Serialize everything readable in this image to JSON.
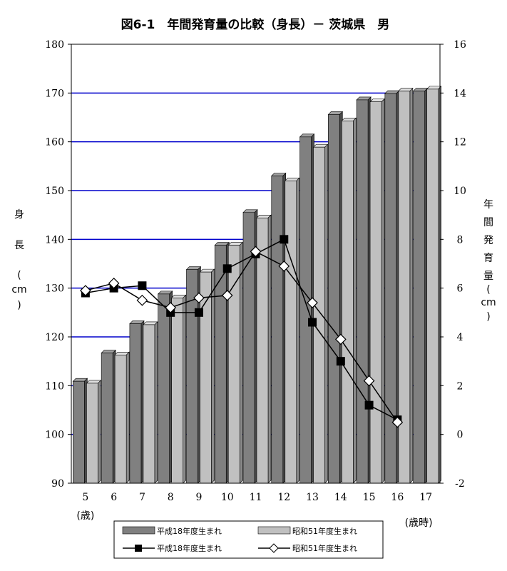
{
  "chart_data": {
    "type": "bar",
    "title": "図6-1　年間発育量の比較（身長）－ 茨城県　男",
    "categories": [
      "5",
      "6",
      "7",
      "8",
      "9",
      "10",
      "11",
      "12",
      "13",
      "14",
      "15",
      "16",
      "17"
    ],
    "x_unit_left": "(歳)",
    "x_unit_right": "(歳時)",
    "y_left": {
      "label": [
        "身",
        "長",
        "(",
        "cm",
        ")"
      ],
      "ylim": [
        90,
        180
      ],
      "ticks": [
        90,
        100,
        110,
        120,
        130,
        140,
        150,
        160,
        170,
        180
      ]
    },
    "y_right": {
      "label": [
        "年",
        "間",
        "発",
        "育",
        "量",
        "(",
        "cm",
        ")"
      ],
      "ylim": [
        -2,
        16
      ],
      "ticks": [
        -2,
        0,
        2,
        4,
        6,
        8,
        10,
        12,
        14,
        16
      ]
    },
    "gridlines": [
      100,
      110,
      120,
      130,
      140,
      150,
      160,
      170
    ],
    "bar_series": [
      {
        "name": "平成18年度生まれ",
        "color": "#808080",
        "values": [
          110.9,
          116.7,
          122.7,
          128.8,
          133.8,
          138.8,
          145.5,
          153.0,
          161.0,
          165.6,
          168.6,
          169.9,
          170.4
        ]
      },
      {
        "name": "昭和51年度生まれ",
        "color": "#c0c0c0",
        "values": [
          110.5,
          116.3,
          122.5,
          128.0,
          133.3,
          138.8,
          144.4,
          152.0,
          158.9,
          164.3,
          168.2,
          170.4,
          170.8
        ]
      }
    ],
    "line_series": [
      {
        "name": "平成18年度生まれ",
        "marker": "square",
        "x": [
          "5",
          "6",
          "7",
          "8",
          "9",
          "10",
          "11",
          "12",
          "13",
          "14",
          "15",
          "16"
        ],
        "values": [
          5.8,
          6.0,
          6.1,
          5.0,
          5.0,
          6.8,
          7.4,
          8.0,
          4.6,
          3.0,
          1.2,
          0.6
        ]
      },
      {
        "name": "昭和51年度生まれ",
        "marker": "diamond",
        "x": [
          "5",
          "6",
          "7",
          "8",
          "9",
          "10",
          "11",
          "12",
          "13",
          "14",
          "15",
          "16"
        ],
        "values": [
          5.9,
          6.2,
          5.5,
          5.2,
          5.6,
          5.7,
          7.5,
          6.9,
          5.4,
          3.9,
          2.2,
          0.5
        ]
      }
    ]
  }
}
